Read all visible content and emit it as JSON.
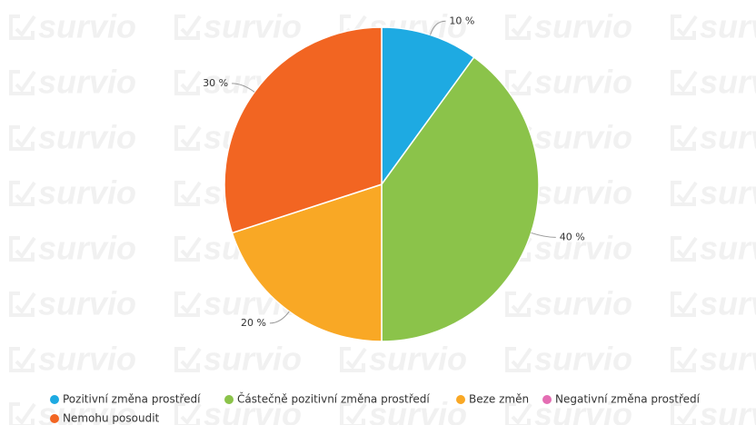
{
  "watermark": "survio",
  "chart_data": {
    "type": "pie",
    "categories": [
      "Pozitivní změna prostředí",
      "Částečně pozitivní změna prostředí",
      "Beze změn",
      "Negativní změna prostředí",
      "Nemohu posoudit"
    ],
    "values": [
      10,
      40,
      20,
      0,
      30
    ],
    "value_labels": [
      "10 %",
      "40 %",
      "20 %",
      null,
      "30 %"
    ],
    "colors": [
      "#1eaae2",
      "#8bc34a",
      "#f9a825",
      "#e46db3",
      "#f26522"
    ],
    "legend": "bottom"
  }
}
